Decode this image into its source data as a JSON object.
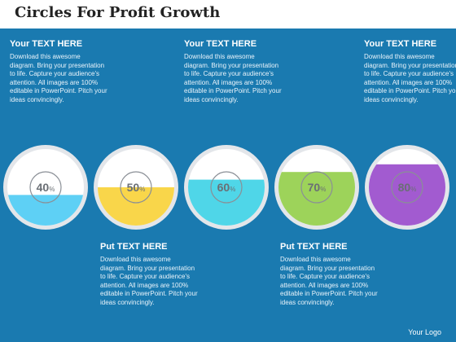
{
  "title": "Circles For Profit Growth",
  "panels": [
    {
      "heading": "Your TEXT HERE",
      "body": "Download this awesome diagram. Bring your presentation to life. Capture your audience's attention. All images are 100% editable in PowerPoint. Pitch your ideas convincingly."
    },
    {
      "heading": "Put TEXT HERE",
      "body": "Download this awesome diagram. Bring your presentation to life. Capture your audience's attention. All images are 100% editable in PowerPoint. Pitch your ideas convincingly."
    },
    {
      "heading": "Your TEXT HERE",
      "body": "Download this awesome diagram. Bring your presentation to life. Capture your audience's attention. All images are 100% editable in PowerPoint. Pitch your ideas convincingly."
    },
    {
      "heading": "Put TEXT HERE",
      "body": "Download this awesome diagram. Bring your presentation to life. Capture your audience's attention. All images are 100% editable in PowerPoint. Pitch your ideas convincingly."
    },
    {
      "heading": "Your TEXT HERE",
      "body": "Download this awesome diagram. Bring your presentation to life. Capture your audience's attention. All images are 100% editable in PowerPoint. Pitch your ideas convincingly."
    }
  ],
  "circles": [
    {
      "value": 40,
      "label": "40",
      "unit": "%",
      "color": "#5ed0f5"
    },
    {
      "value": 50,
      "label": "50",
      "unit": "%",
      "color": "#f9d64a"
    },
    {
      "value": 60,
      "label": "60",
      "unit": "%",
      "color": "#4fd6e8"
    },
    {
      "value": 70,
      "label": "70",
      "unit": "%",
      "color": "#9dd35a"
    },
    {
      "value": 80,
      "label": "80",
      "unit": "%",
      "color": "#a25bd0"
    }
  ],
  "logo": "Your Logo"
}
